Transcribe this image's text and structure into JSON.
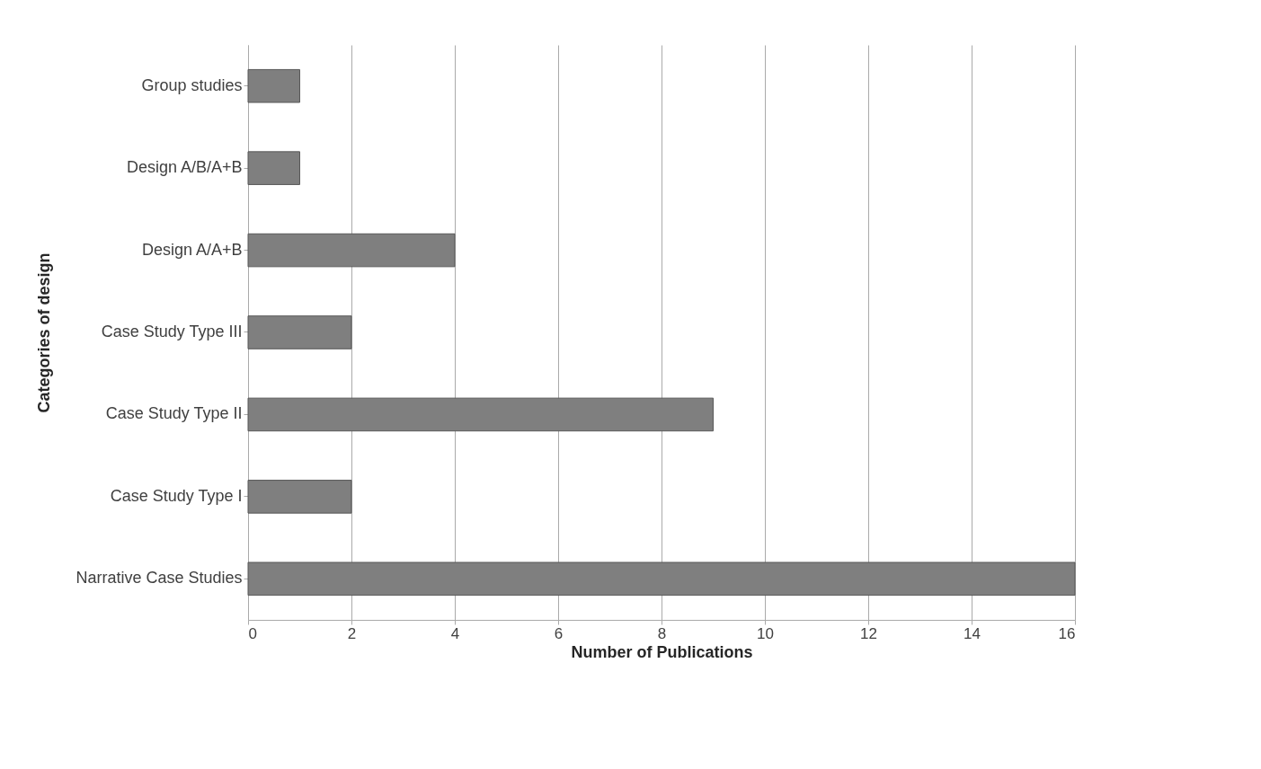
{
  "chart_data": {
    "type": "bar",
    "orientation": "horizontal",
    "xlabel": "Number of Publications",
    "ylabel": "Categories of design",
    "categories": [
      "Group studies",
      "Design A/B/A+B",
      "Design A/A+B",
      "Case Study Type III",
      "Case Study Type II",
      "Case Study Type I",
      "Narrative Case Studies"
    ],
    "values": [
      1,
      1,
      4,
      2,
      9,
      2,
      16
    ],
    "color": "#7f7f7f",
    "xlim": [
      0,
      16
    ],
    "xticks": [
      0,
      2,
      4,
      6,
      8,
      10,
      12,
      14,
      16
    ],
    "grid": "x"
  }
}
